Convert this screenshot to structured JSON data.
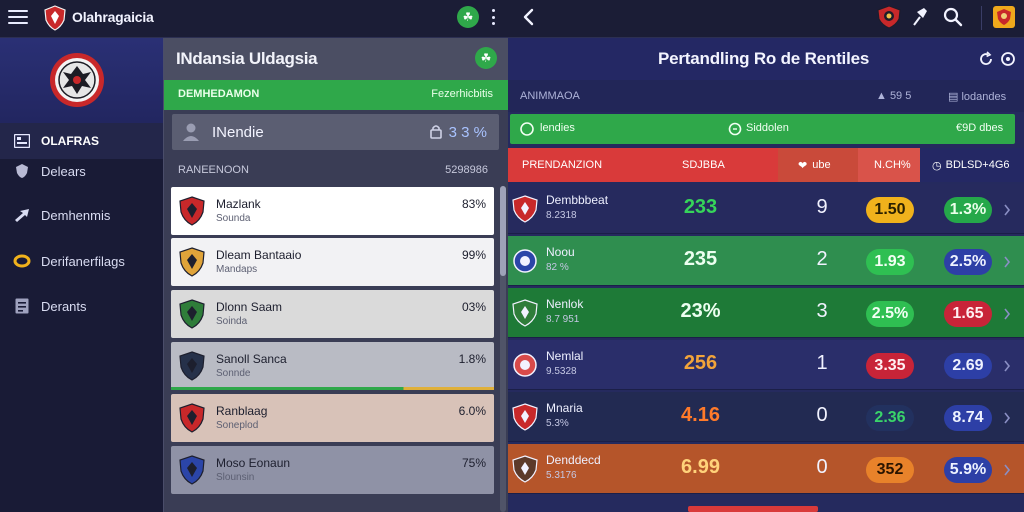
{
  "topbar": {
    "brand": "Olahragaicia",
    "icons": [
      "menu-icon",
      "shield-icon",
      "leaf-icon",
      "more-vertical-icon",
      "chevron-left-icon",
      "crest-icon",
      "pin-icon",
      "search-icon",
      "badge-icon"
    ]
  },
  "sidebar": {
    "items": [
      {
        "label": "OLAFRAS",
        "icon": "grid-icon",
        "active": true
      },
      {
        "label": "Delears",
        "icon": "shield-icon",
        "active": false
      },
      {
        "label": "Demhenmis",
        "icon": "arrow-icon",
        "active": false
      },
      {
        "label": "Derifanerfilags",
        "icon": "ring-icon",
        "active": false
      },
      {
        "label": "Derants",
        "icon": "document-icon",
        "active": false
      }
    ]
  },
  "middle": {
    "title": "INdansia Uldagsia",
    "green_left": "DEMHEDAMON",
    "green_right": "Fezerhicbitis",
    "search_name": "INendie",
    "search_value": "3 3 %",
    "section_left": "RANEENOON",
    "section_right": "5298986",
    "cards": [
      {
        "name": "Mazlank",
        "sub": "Sounda",
        "pct": "83%",
        "bg": "#ffffff",
        "crest": "#c8282a"
      },
      {
        "name": "Dleam Bantaaio",
        "sub": "Mandaps",
        "pct": "99%",
        "bg": "#f2f2f4",
        "crest": "#e0a43a"
      },
      {
        "name": "Dlonn Saam",
        "sub": "Soinda",
        "pct": "03%",
        "bg": "#dadada",
        "crest": "#2f7d3a"
      },
      {
        "name": "Sanoll Sanca",
        "sub": "Sonnde",
        "pct": "1.8%",
        "bg": "#b9bbc4",
        "crest": "#26314a"
      },
      {
        "name": "Ranblaag",
        "sub": "Soneplod",
        "pct": "6.0%",
        "bg": "#d8c2b8",
        "crest": "#c8282a"
      },
      {
        "name": "Moso Eonaun",
        "sub": "Slounsin",
        "pct": "75%",
        "bg": "#8f92a6",
        "crest": "#2b45a8"
      }
    ]
  },
  "right": {
    "title": "Pertandling Ro de Rentiles",
    "meta_left": "ANIMMAOA",
    "meta_mid": "▲ 59 5",
    "meta_right": "▤ lodandes",
    "green_left": "lendies",
    "green_mid": "Siddolen",
    "green_right": "€9D dbes",
    "head": {
      "team": "PRENDANZION",
      "c1": "SDJBBA",
      "c2": "ube",
      "c3": "N.CH%",
      "c4": "BDLSD+4G6"
    },
    "rows": [
      {
        "name": "Dembbbeat",
        "sub": "8.2318",
        "v1": "233",
        "v1_color": "#36d45a",
        "v2": "9",
        "p1": "1.50",
        "p1_bg": "#f0b21c",
        "p1_fg": "#2a2000",
        "p2": "1.3%",
        "p2_bg": "#25a84a",
        "p2_fg": "#eaffea",
        "bg": "#262a5e",
        "crest": "#c8282a"
      },
      {
        "name": "Noou",
        "sub": "82 %",
        "v1": "235",
        "v1_color": "#ecfff0",
        "v2": "2",
        "p1": "1.93",
        "p1_bg": "#2fbf52",
        "p1_fg": "#f2fff4",
        "p2": "2.5%",
        "p2_bg": "#2d3fa6",
        "p2_fg": "#eef2ff",
        "bg": "#2f8e4f",
        "crest": "#2b45a8"
      },
      {
        "name": "Nenlok",
        "sub": "8.7 951",
        "v1": "23%",
        "v1_color": "#ecfff0",
        "v2": "3",
        "p1": "2.5%",
        "p1_bg": "#2fbf52",
        "p1_fg": "#f2fff4",
        "p2": "1.65",
        "p2_bg": "#c82438",
        "p2_fg": "#fff0f2",
        "bg": "#1e7a37",
        "crest": "#2f7d3a"
      },
      {
        "name": "Nemlal",
        "sub": "9.5328",
        "v1": "256",
        "v1_color": "#f2a43a",
        "v2": "1",
        "p1": "3.35",
        "p1_bg": "#c82438",
        "p1_fg": "#fff0f2",
        "p2": "2.69",
        "p2_bg": "#2d3fa6",
        "p2_fg": "#eef2ff",
        "bg": "#2a2e6a",
        "crest": "#d84a4a"
      },
      {
        "name": "Mnaria",
        "sub": "5.3%",
        "v1": "4.16",
        "v1_color": "#ff7a2a",
        "v2": "0",
        "p1": "2.36",
        "p1_bg": "#22315f",
        "p1_fg": "#3ad46a",
        "p2": "8.74",
        "p2_bg": "#2d3fa6",
        "p2_fg": "#eef2ff",
        "bg": "#222a52",
        "crest": "#c8282a"
      },
      {
        "name": "Denddecd",
        "sub": "5.3176",
        "v1": "6.99",
        "v1_color": "#ffd27a",
        "v2": "0",
        "p1": "352",
        "p1_bg": "#e8822a",
        "p1_fg": "#2a1400",
        "p2": "5.9%",
        "p2_bg": "#2d3fa6",
        "p2_fg": "#eef2ff",
        "bg": "#b5552a",
        "crest": "#5c3a2a"
      }
    ]
  }
}
